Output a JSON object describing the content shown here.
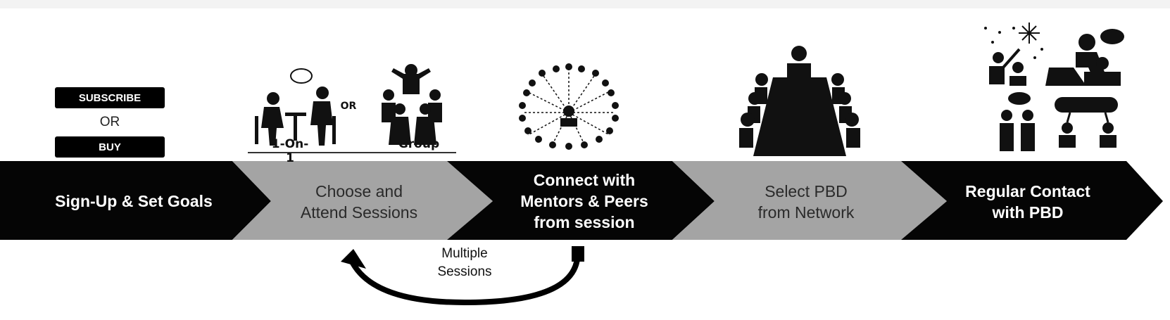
{
  "steps": [
    {
      "label": "Sign-Up & Set Goals",
      "fill": "#050505"
    },
    {
      "label": "Choose and\nAttend Sessions",
      "fill": "#a4a4a4"
    },
    {
      "label": "Connect with\nMentors & Peers\nfrom session",
      "fill": "#050505"
    },
    {
      "label": "Select PBD\nfrom Network",
      "fill": "#a4a4a4"
    },
    {
      "label": "Regular Contact\nwith PBD",
      "fill": "#050505"
    }
  ],
  "signup_options": {
    "subscribe": "SUBSCRIBE",
    "or": "OR",
    "buy": "BUY"
  },
  "session_types": {
    "one_on_one": "1-On-1",
    "or": "OR",
    "group": "Group"
  },
  "loop": {
    "label": "Multiple\nSessions"
  },
  "icons": [
    "subscribe-or-buy-buttons",
    "one-on-one-meeting-icon",
    "group-session-icon",
    "network-icon",
    "boardroom-icon",
    "mentoring-icons"
  ]
}
